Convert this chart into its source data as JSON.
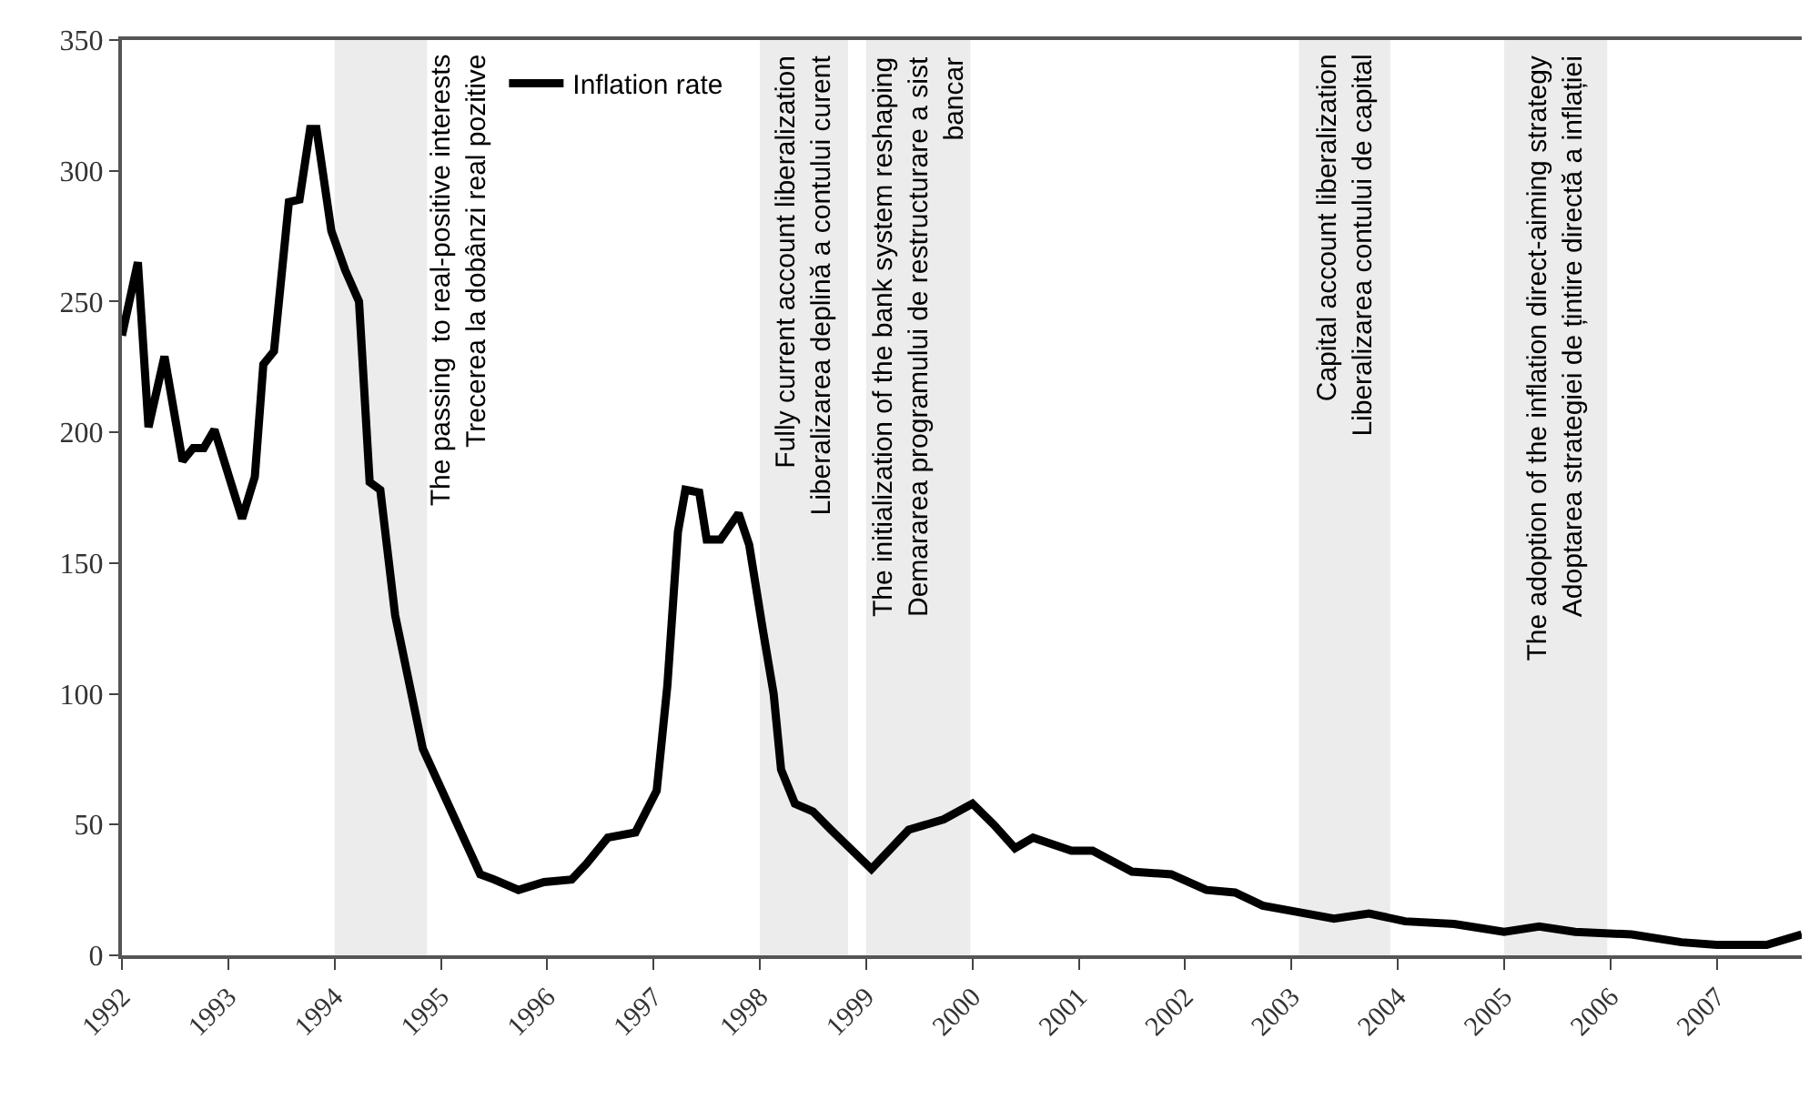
{
  "chart_data": {
    "type": "line",
    "series": [
      {
        "name": "Inflation rate",
        "color": "#000000",
        "x": [
          1992.0,
          1992.15,
          1992.25,
          1992.4,
          1992.57,
          1992.67,
          1992.77,
          1992.87,
          1993.13,
          1993.25,
          1993.33,
          1993.43,
          1993.57,
          1993.67,
          1993.77,
          1993.83,
          1993.97,
          1994.1,
          1994.23,
          1994.33,
          1994.43,
          1994.57,
          1994.83,
          1995.1,
          1995.37,
          1995.5,
          1995.73,
          1995.97,
          1996.23,
          1996.37,
          1996.57,
          1996.83,
          1997.03,
          1997.13,
          1997.23,
          1997.3,
          1997.43,
          1997.5,
          1997.63,
          1997.8,
          1997.9,
          1998.03,
          1998.13,
          1998.2,
          1998.33,
          1998.5,
          1998.67,
          1999.05,
          1999.4,
          1999.73,
          2000.0,
          2000.2,
          2000.4,
          2000.57,
          2000.93,
          2001.13,
          2001.5,
          2001.87,
          2002.2,
          2002.47,
          2002.73,
          2003.0,
          2003.4,
          2003.73,
          2004.07,
          2004.53,
          2005.0,
          2005.33,
          2005.67,
          2006.2,
          2006.67,
          2007.0,
          2007.47,
          2007.8
        ],
        "values": [
          237,
          265,
          202,
          229,
          189,
          194,
          194,
          201,
          167,
          183,
          226,
          231,
          288,
          289,
          316,
          316,
          277,
          262,
          250,
          181,
          178,
          130,
          79,
          55,
          31,
          29,
          25,
          28,
          29,
          35,
          45,
          47,
          63,
          103,
          162,
          178,
          177,
          159,
          159,
          169,
          157,
          124,
          100,
          71,
          58,
          55,
          48,
          33,
          48,
          52,
          58,
          50,
          41,
          45,
          40,
          40,
          32,
          31,
          25,
          24,
          19,
          17,
          14,
          16,
          13,
          12,
          9,
          11,
          9,
          8,
          5,
          4,
          4,
          8
        ]
      }
    ],
    "xlim": [
      1992,
      2007.8
    ],
    "xticks": [
      1992,
      1993,
      1994,
      1995,
      1996,
      1997,
      1998,
      1999,
      2000,
      2001,
      2002,
      2003,
      2004,
      2005,
      2006,
      2007
    ],
    "ylim": [
      0,
      350
    ],
    "yticks": [
      0,
      50,
      100,
      150,
      200,
      250,
      300,
      350
    ],
    "grid": false,
    "legend": "top left",
    "bands": [
      {
        "axis": "x",
        "from": 1994.0,
        "to": 1994.87,
        "color": "#ececec",
        "label": "The passing  to real-positive interests\nTrecerea la dobânzi real pozitive"
      },
      {
        "axis": "x",
        "from": 1998.0,
        "to": 1998.83,
        "color": "#ececec",
        "label": "Fully current account liberalization\nLiberalizarea deplină a contului curent"
      },
      {
        "axis": "x",
        "from": 1999.0,
        "to": 1999.98,
        "color": "#ececec",
        "label": "The initialization of the bank system reshaping\nDemararea programului de restructurare a sist\nbancar"
      },
      {
        "axis": "x",
        "from": 2003.07,
        "to": 2003.93,
        "color": "#ececec",
        "label": "Capital account liberalization\nLiberalizarea contului de capital"
      },
      {
        "axis": "x",
        "from": 2005.0,
        "to": 2005.97,
        "color": "#ececec",
        "label": "The adoption of the inflation direct-aiming strategy\nAdoptarea strategiei de țintire directă a inflației"
      }
    ]
  }
}
